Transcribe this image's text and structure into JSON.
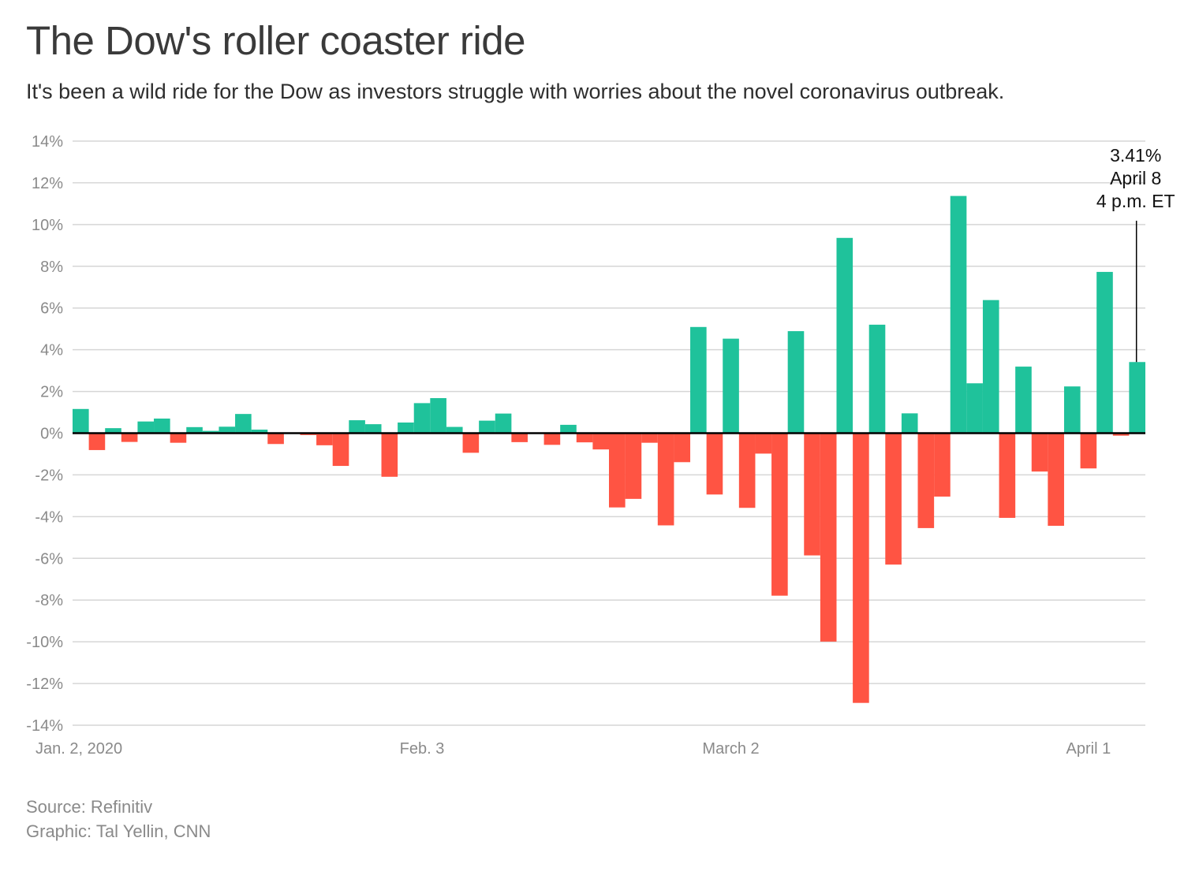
{
  "header": {
    "title": "The Dow's roller coaster ride",
    "subtitle": "It's been a wild ride for the Dow as investors struggle with worries about the novel coronavirus outbreak."
  },
  "footer": {
    "source": "Source: Refinitiv",
    "credit": "Graphic: Tal Yellin, CNN"
  },
  "colors": {
    "positive": "#1fc29b",
    "negative": "#ff5443",
    "grid": "#d6d6d6",
    "zero_line": "#000000"
  },
  "chart_data": {
    "type": "bar",
    "title": "The Dow's roller coaster ride",
    "ylim": [
      -14,
      14
    ],
    "y_ticks": [
      14,
      12,
      10,
      8,
      6,
      4,
      2,
      0,
      -2,
      -4,
      -6,
      -8,
      -10,
      -12,
      -14
    ],
    "y_tick_labels": [
      "14%",
      "12%",
      "10%",
      "8%",
      "6%",
      "4%",
      "2%",
      "0%",
      "-2%",
      "-4%",
      "-6%",
      "-8%",
      "-10%",
      "-12%",
      "-14%"
    ],
    "x_tick_labels": [
      {
        "label": "Jan. 2, 2020",
        "index": 0
      },
      {
        "label": "Feb. 3",
        "index": 21
      },
      {
        "label": "March 2",
        "index": 40
      },
      {
        "label": "April 1",
        "index": 62
      }
    ],
    "grid": true,
    "values": [
      1.16,
      -0.81,
      0.24,
      -0.42,
      0.56,
      0.7,
      -0.46,
      0.29,
      0.11,
      0.31,
      0.92,
      0.17,
      -0.52,
      0.0,
      -0.09,
      -0.58,
      -1.57,
      0.62,
      0.43,
      -2.09,
      0.51,
      1.44,
      1.68,
      0.3,
      -0.94,
      0.6,
      0.94,
      -0.43,
      0.0,
      -0.56,
      0.4,
      -0.44,
      -0.78,
      -3.56,
      -3.15,
      -0.46,
      -4.42,
      -1.39,
      5.09,
      -2.94,
      4.53,
      -3.58,
      -0.98,
      -7.79,
      4.89,
      -5.86,
      -9.99,
      9.36,
      -12.93,
      5.2,
      -6.3,
      0.95,
      -4.55,
      -3.04,
      11.37,
      2.39,
      6.38,
      -4.06,
      3.19,
      -1.84,
      -4.44,
      2.24,
      -1.69,
      7.73,
      -0.12,
      3.41
    ],
    "annotation": {
      "index": 65,
      "lines": [
        "3.41%",
        "April 8",
        "4 p.m. ET"
      ]
    }
  }
}
